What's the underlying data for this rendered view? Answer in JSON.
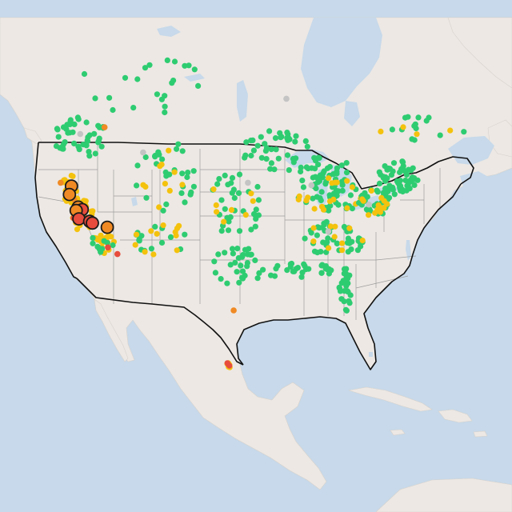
{
  "map": {
    "base": "light-gray-canvas",
    "colors": {
      "ocean": "#c7d9ea",
      "land": "#ede8e4",
      "us_border": "#111111",
      "state_border": "#9d9d9d",
      "good": "#2ecc71",
      "moderate": "#f4c20d",
      "unhealthy_sensitive": "#f08a24",
      "unhealthy": "#e74c3c",
      "unknown": "#c4c4c4"
    },
    "clusters": [
      {
        "region": "pacific-northwest",
        "status": "good",
        "count": 45,
        "spread": 1.8
      },
      {
        "region": "northern-california",
        "status": "moderate",
        "count": 22,
        "spread": 1.4
      },
      {
        "region": "california-central",
        "status": "moderate",
        "count": 30,
        "spread": 1.3
      },
      {
        "region": "southern-california",
        "status": "moderate",
        "count": 20,
        "spread": 1.0
      },
      {
        "region": "southern-california",
        "status": "good",
        "count": 10,
        "spread": 1.0
      },
      {
        "region": "upper-midwest",
        "status": "good",
        "count": 40,
        "spread": 2.5
      },
      {
        "region": "great-lakes",
        "status": "good",
        "count": 35,
        "spread": 2.0
      },
      {
        "region": "ohio-valley",
        "status": "good",
        "count": 40,
        "spread": 2.0
      },
      {
        "region": "ohio-valley",
        "status": "moderate",
        "count": 18,
        "spread": 2.0
      },
      {
        "region": "northeast",
        "status": "good",
        "count": 60,
        "spread": 1.6
      },
      {
        "region": "mid-atlantic",
        "status": "good",
        "count": 30,
        "spread": 1.2
      },
      {
        "region": "mid-atlantic",
        "status": "moderate",
        "count": 14,
        "spread": 1.2
      },
      {
        "region": "southeast",
        "status": "good",
        "count": 45,
        "spread": 2.5
      },
      {
        "region": "southeast",
        "status": "moderate",
        "count": 10,
        "spread": 2.5
      },
      {
        "region": "gulf-coast",
        "status": "good",
        "count": 30,
        "spread": 2.0
      },
      {
        "region": "florida",
        "status": "good",
        "count": 25,
        "spread": 1.6
      },
      {
        "region": "texas",
        "status": "good",
        "count": 30,
        "spread": 2.5
      },
      {
        "region": "plains",
        "status": "good",
        "count": 35,
        "spread": 3.0
      },
      {
        "region": "plains",
        "status": "moderate",
        "count": 8,
        "spread": 3.0
      },
      {
        "region": "rockies",
        "status": "good",
        "count": 30,
        "spread": 3.5
      },
      {
        "region": "rockies",
        "status": "moderate",
        "count": 10,
        "spread": 3.5
      },
      {
        "region": "southwest",
        "status": "good",
        "count": 15,
        "spread": 2.5
      },
      {
        "region": "southwest",
        "status": "moderate",
        "count": 12,
        "spread": 2.5
      },
      {
        "region": "western-canada",
        "status": "good",
        "count": 22,
        "spread": 4.5
      },
      {
        "region": "eastern-canada",
        "status": "good",
        "count": 14,
        "spread": 3.0
      },
      {
        "region": "eastern-canada",
        "status": "moderate",
        "count": 4,
        "spread": 3.0
      },
      {
        "region": "central-mexico",
        "status": "moderate",
        "count": 6,
        "spread": 0.5
      },
      {
        "region": "central-mexico",
        "status": "unhealthy",
        "count": 3,
        "spread": 0.4
      }
    ],
    "large_markers": [
      {
        "lat": 40.8,
        "lon": -122.3,
        "status": "unhealthy_sensitive"
      },
      {
        "lat": 39.8,
        "lon": -122.6,
        "status": "unhealthy_sensitive"
      },
      {
        "lat": 38.3,
        "lon": -121.3,
        "status": "unhealthy_sensitive"
      },
      {
        "lat": 38.0,
        "lon": -120.7,
        "status": "unhealthy"
      },
      {
        "lat": 37.9,
        "lon": -121.6,
        "status": "unhealthy_sensitive"
      },
      {
        "lat": 36.9,
        "lon": -121.2,
        "status": "unhealthy"
      },
      {
        "lat": 36.6,
        "lon": -119.6,
        "status": "unhealthy"
      },
      {
        "lat": 36.4,
        "lon": -119.2,
        "status": "unhealthy"
      },
      {
        "lat": 35.9,
        "lon": -117.0,
        "status": "unhealthy_sensitive"
      }
    ],
    "small_markers": [
      {
        "lat": 41.2,
        "lon": -123.9,
        "status": "unhealthy_sensitive"
      },
      {
        "lat": 39.2,
        "lon": -121.9,
        "status": "unhealthy_sensitive"
      },
      {
        "lat": 37.0,
        "lon": -122.0,
        "status": "unhealthy"
      },
      {
        "lat": 33.5,
        "lon": -116.9,
        "status": "unhealthy"
      },
      {
        "lat": 32.7,
        "lon": -115.5,
        "status": "unhealthy"
      },
      {
        "lat": 26.0,
        "lon": -98.3,
        "status": "unhealthy_sensitive"
      },
      {
        "lat": 47.8,
        "lon": -117.4,
        "status": "unhealthy_sensitive"
      },
      {
        "lat": 40.9,
        "lon": -86.8,
        "status": "unknown"
      },
      {
        "lat": 41.2,
        "lon": -96.2,
        "status": "unknown"
      },
      {
        "lat": 35.4,
        "lon": -84.3,
        "status": "unknown"
      },
      {
        "lat": 44.8,
        "lon": -111.7,
        "status": "unknown"
      },
      {
        "lat": 38.6,
        "lon": -78.3,
        "status": "unknown"
      },
      {
        "lat": 51.2,
        "lon": -90.5,
        "status": "unknown"
      },
      {
        "lat": 47.0,
        "lon": -121.0,
        "status": "unknown"
      }
    ]
  }
}
